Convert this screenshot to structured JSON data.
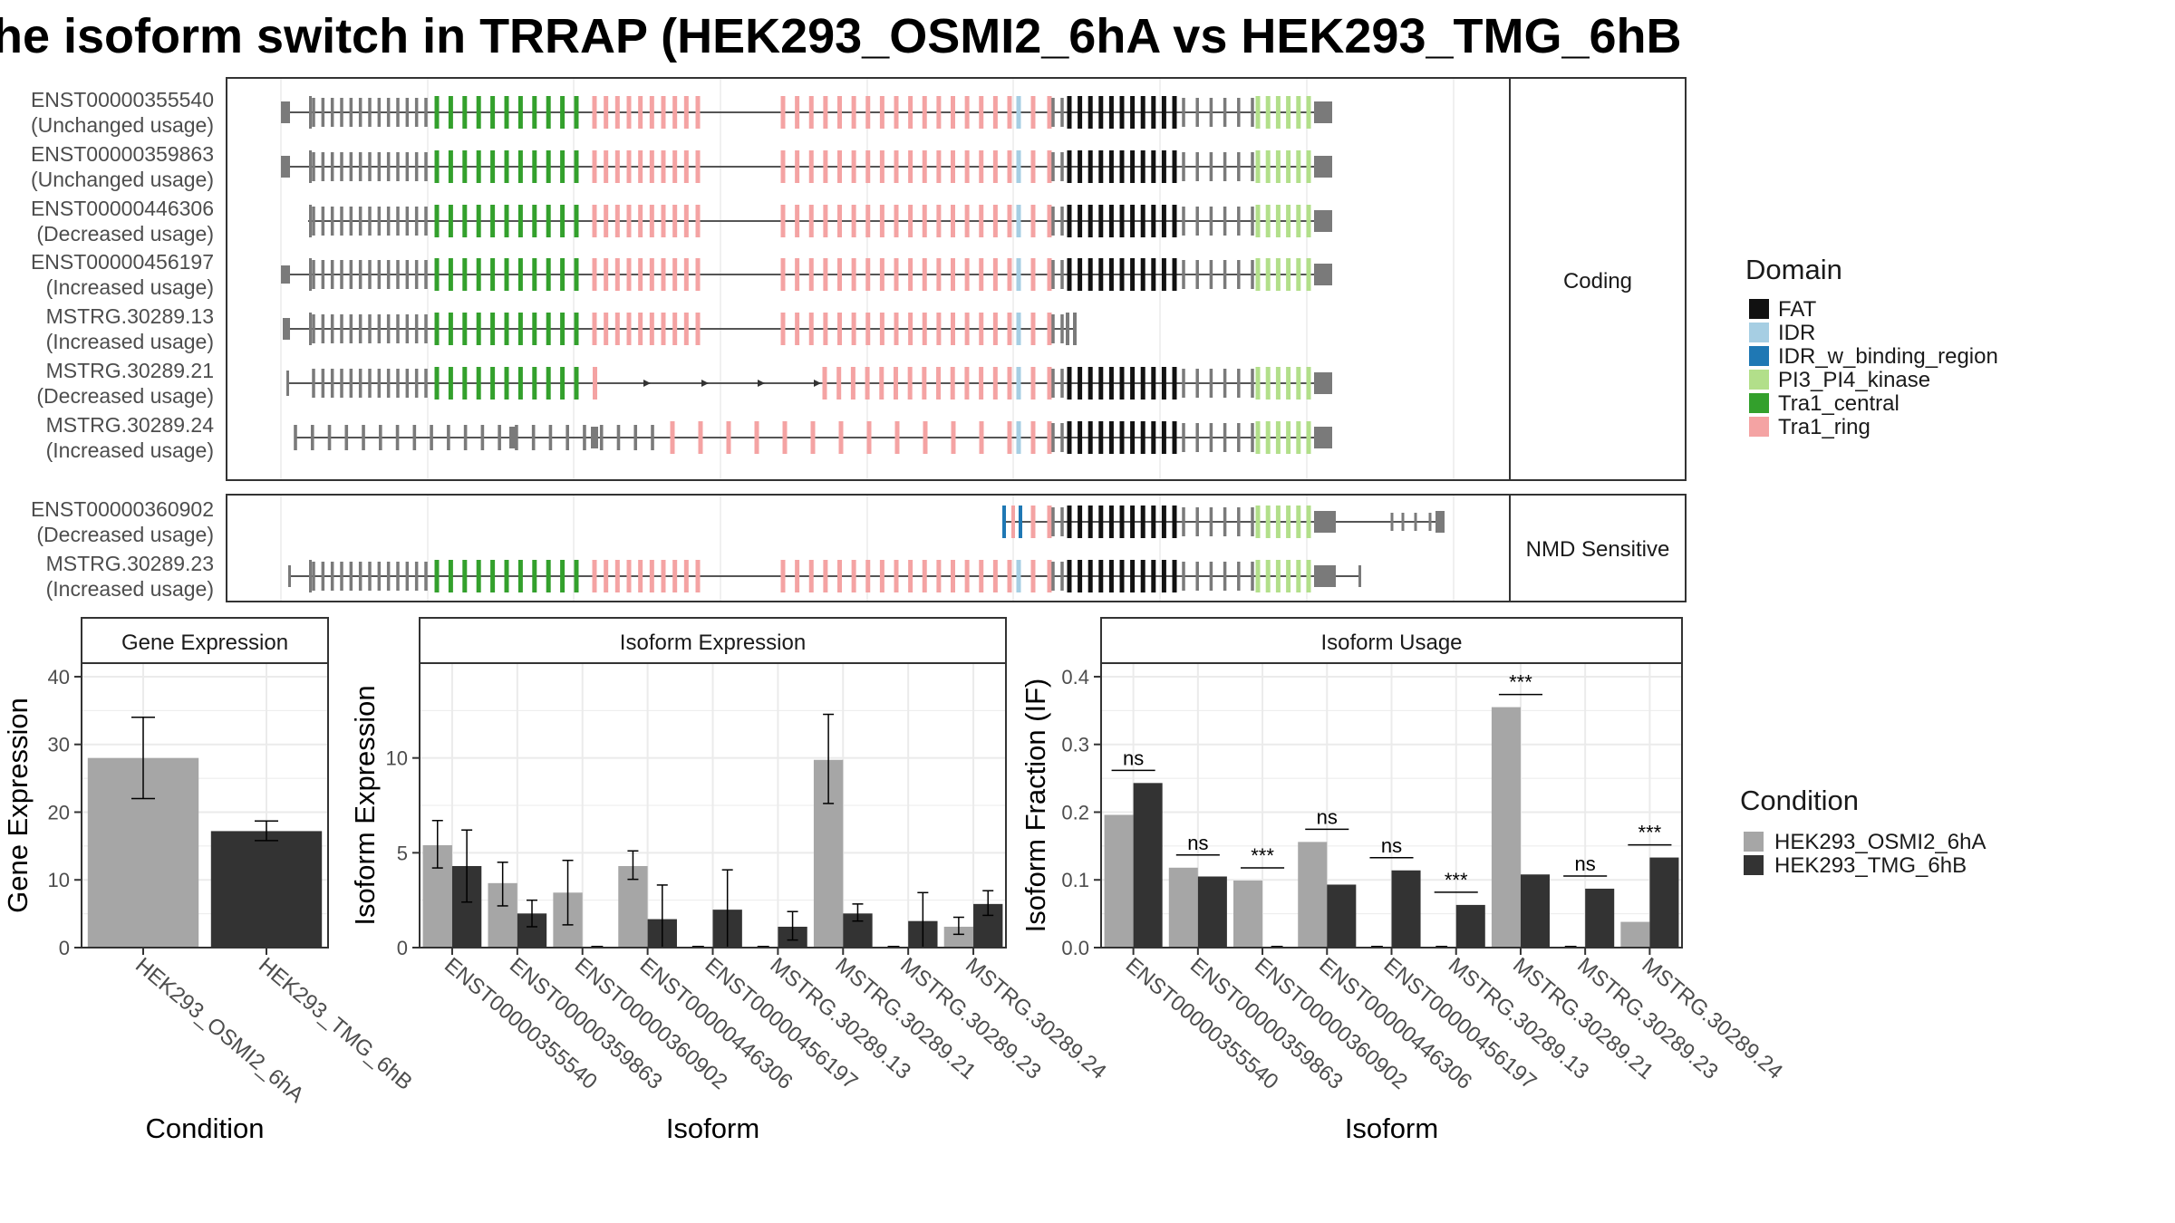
{
  "title": "he isoform switch in TRRAP (HEK293_OSMI2_6hA vs HEK293_TMG_6hB",
  "colors": {
    "cond1": "#a6a6a6",
    "cond2": "#333333",
    "intron": "#555555",
    "exon": "#7a7a7a",
    "FAT": "#111111",
    "IDR": "#a6cee3",
    "IDR_w_binding_region": "#1f78b4",
    "PI3_PI4_kinase": "#b2df8a",
    "Tra1_central": "#33a02c",
    "Tra1_ring": "#f4a3a3"
  },
  "structure": {
    "coding_label": "Coding",
    "nmd_label": "NMD Sensitive",
    "coding_transcripts": [
      {
        "id": "ENST00000355540",
        "usage": "(Unchanged usage)"
      },
      {
        "id": "ENST00000359863",
        "usage": "(Unchanged usage)"
      },
      {
        "id": "ENST00000446306",
        "usage": "(Decreased usage)"
      },
      {
        "id": "ENST00000456197",
        "usage": "(Increased usage)"
      },
      {
        "id": "MSTRG.30289.13",
        "usage": "(Increased usage)"
      },
      {
        "id": "MSTRG.30289.21",
        "usage": "(Decreased usage)"
      },
      {
        "id": "MSTRG.30289.24",
        "usage": "(Increased usage)"
      }
    ],
    "nmd_transcripts": [
      {
        "id": "ENST00000360902",
        "usage": "(Decreased usage)"
      },
      {
        "id": "MSTRG.30289.23",
        "usage": "(Increased usage)"
      }
    ]
  },
  "domain_legend": {
    "title": "Domain",
    "items": [
      {
        "label": "FAT",
        "color": "#111111"
      },
      {
        "label": "IDR",
        "color": "#a6cee3"
      },
      {
        "label": "IDR_w_binding_region",
        "color": "#1f78b4"
      },
      {
        "label": "PI3_PI4_kinase",
        "color": "#b2df8a"
      },
      {
        "label": "Tra1_central",
        "color": "#33a02c"
      },
      {
        "label": "Tra1_ring",
        "color": "#f4a3a3"
      }
    ]
  },
  "condition_legend": {
    "title": "Condition",
    "items": [
      {
        "label": "HEK293_OSMI2_6hA",
        "color": "#a6a6a6"
      },
      {
        "label": "HEK293_TMG_6hB",
        "color": "#333333"
      }
    ]
  },
  "chart_data": [
    {
      "type": "bar",
      "title": "Gene Expression",
      "xlabel": "Condition",
      "ylabel": "Gene Expression",
      "categories": [
        "HEK293_OSMI2_6hA",
        "HEK293_TMG_6hB"
      ],
      "values": [
        28,
        17.2
      ],
      "error_low": [
        22,
        15.8
      ],
      "error_high": [
        34,
        18.7
      ],
      "ylim": [
        0,
        42
      ],
      "yticks": [
        0,
        10,
        20,
        30,
        40
      ],
      "grid": true
    },
    {
      "type": "bar",
      "title": "Isoform Expression",
      "xlabel": "Isoform",
      "ylabel": "Isoform Expression",
      "categories": [
        "ENST00000355540",
        "ENST00000359863",
        "ENST00000360902",
        "ENST00000446306",
        "ENST00000456197",
        "MSTRG.30289.13",
        "MSTRG.30289.21",
        "MSTRG.30289.23",
        "MSTRG.30289.24"
      ],
      "series": [
        {
          "name": "HEK293_OSMI2_6hA",
          "values": [
            5.4,
            3.4,
            2.9,
            4.3,
            0,
            0,
            9.9,
            0,
            1.1
          ],
          "error_low": [
            4.2,
            2.2,
            1.2,
            3.6,
            0,
            0,
            7.6,
            0,
            0.7
          ],
          "error_high": [
            6.7,
            4.5,
            4.6,
            5.1,
            0,
            0,
            12.3,
            0,
            1.6
          ]
        },
        {
          "name": "HEK293_TMG_6hB",
          "values": [
            4.3,
            1.8,
            0,
            1.5,
            2.0,
            1.1,
            1.8,
            1.4,
            2.3
          ],
          "error_low": [
            2.4,
            1.1,
            0,
            0,
            0,
            0.4,
            1.4,
            0,
            1.7
          ],
          "error_high": [
            6.2,
            2.5,
            0,
            3.3,
            4.1,
            1.9,
            2.3,
            2.9,
            3.0
          ]
        }
      ],
      "ylim": [
        0,
        15
      ],
      "yticks": [
        0,
        5,
        10
      ],
      "grid": true
    },
    {
      "type": "bar",
      "title": "Isoform Usage",
      "xlabel": "Isoform",
      "ylabel": "Isoform Fraction (IF)",
      "categories": [
        "ENST00000355540",
        "ENST00000359863",
        "ENST00000360902",
        "ENST00000446306",
        "ENST00000456197",
        "MSTRG.30289.13",
        "MSTRG.30289.21",
        "MSTRG.30289.23",
        "MSTRG.30289.24"
      ],
      "series": [
        {
          "name": "HEK293_OSMI2_6hA",
          "values": [
            0.196,
            0.118,
            0.099,
            0.156,
            0,
            0,
            0.355,
            0,
            0.038
          ]
        },
        {
          "name": "HEK293_TMG_6hB",
          "values": [
            0.243,
            0.105,
            0,
            0.093,
            0.114,
            0.063,
            0.108,
            0.087,
            0.133
          ]
        }
      ],
      "significance": [
        "ns",
        "ns",
        "***",
        "ns",
        "ns",
        "***",
        "***",
        "ns",
        "***"
      ],
      "ylim": [
        0,
        0.42
      ],
      "yticks": [
        0.0,
        0.1,
        0.2,
        0.3,
        0.4
      ],
      "grid": true
    }
  ]
}
